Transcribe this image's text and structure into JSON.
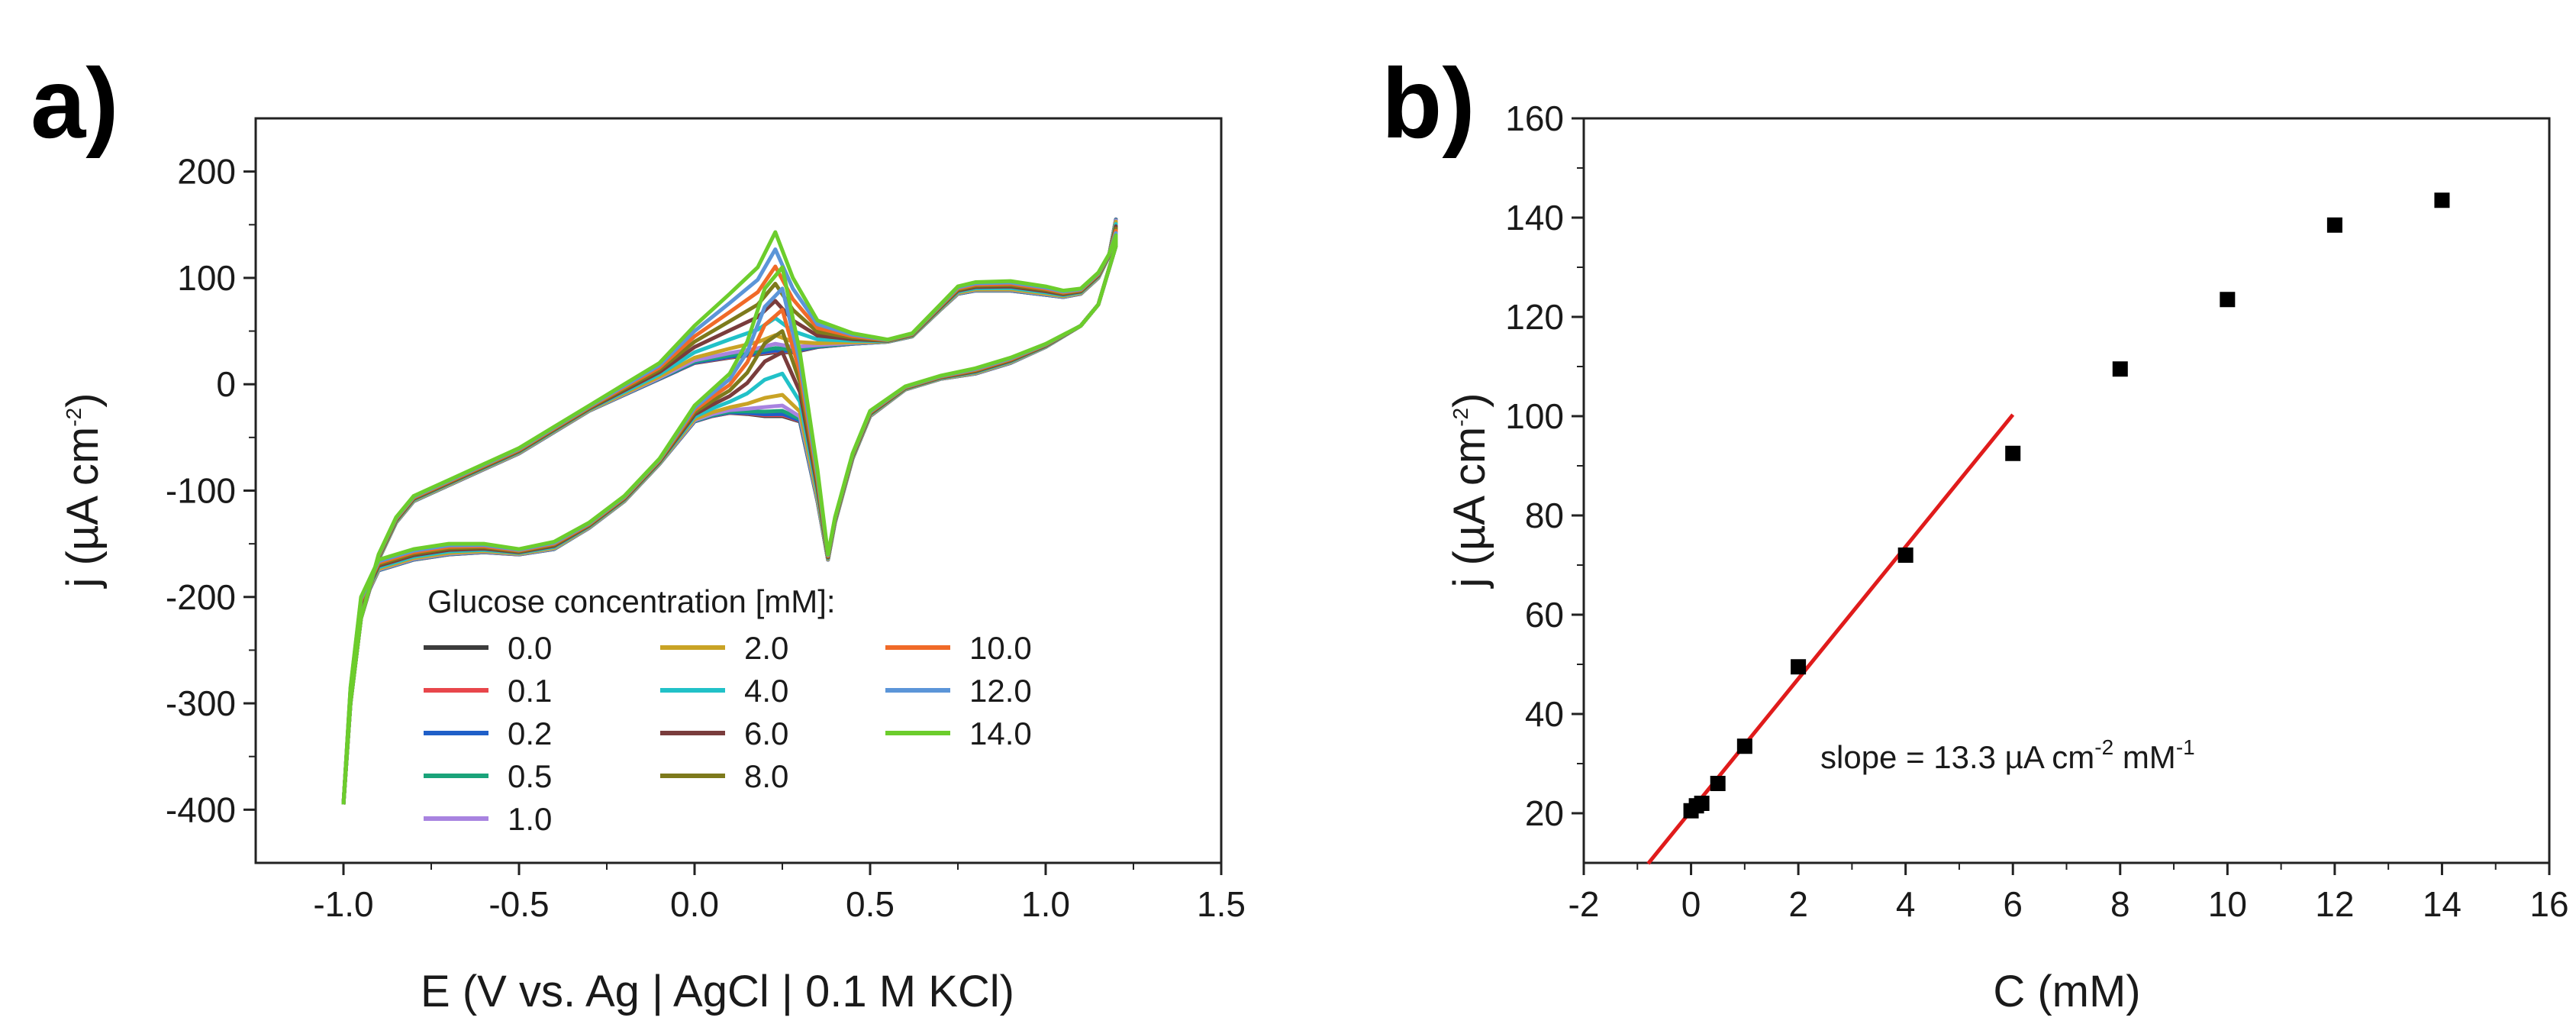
{
  "chart_data": [
    {
      "type": "line",
      "panel_label": "a)",
      "title": "",
      "xlabel": "E (V vs. Ag | AgCl | 0.1 M KCl)",
      "ylabel_main": "j (µA cm",
      "ylabel_sup": "-2",
      "ylabel_tail": ")",
      "xlim": [
        -1.25,
        1.5
      ],
      "ylim": [
        -450,
        250
      ],
      "xticks": [
        -1.0,
        -0.5,
        0.0,
        0.5,
        1.0,
        1.5
      ],
      "xtick_labels": [
        "-1.0",
        "-0.5",
        "0.0",
        "0.5",
        "1.0",
        "1.5"
      ],
      "yticks": [
        -400,
        -300,
        -200,
        -100,
        0,
        100,
        200
      ],
      "ytick_labels": [
        "-400",
        "-300",
        "-200",
        "-100",
        "0",
        "100",
        "200"
      ],
      "legend_title": "Glucose concentration [mM]:",
      "legend_position": "bottom-center",
      "series": [
        {
          "name": "0.0",
          "conc": 0.0,
          "color": "#3c3c3c"
        },
        {
          "name": "0.1",
          "conc": 0.1,
          "color": "#e8464b"
        },
        {
          "name": "0.2",
          "conc": 0.2,
          "color": "#1f5fc8"
        },
        {
          "name": "0.5",
          "conc": 0.5,
          "color": "#1aa37a"
        },
        {
          "name": "1.0",
          "conc": 1.0,
          "color": "#a883e0"
        },
        {
          "name": "2.0",
          "conc": 2.0,
          "color": "#c9a325"
        },
        {
          "name": "4.0",
          "conc": 4.0,
          "color": "#21c1c8"
        },
        {
          "name": "6.0",
          "conc": 6.0,
          "color": "#7a3c3c"
        },
        {
          "name": "8.0",
          "conc": 8.0,
          "color": "#7d7a1c"
        },
        {
          "name": "10.0",
          "conc": 10.0,
          "color": "#f06a28"
        },
        {
          "name": "12.0",
          "conc": 12.0,
          "color": "#5b95d8"
        },
        {
          "name": "14.0",
          "conc": 14.0,
          "color": "#6ccd2c"
        }
      ],
      "anodic_sweep": {
        "E": [
          -1.0,
          -0.98,
          -0.95,
          -0.9,
          -0.85,
          -0.8,
          -0.7,
          -0.6,
          -0.5,
          -0.4,
          -0.3,
          -0.2,
          -0.1,
          0.0,
          0.1,
          0.18,
          0.23,
          0.28,
          0.35,
          0.45,
          0.55,
          0.62,
          0.7,
          0.75,
          0.8,
          0.9,
          1.0,
          1.05,
          1.1,
          1.15,
          1.18,
          1.2
        ],
        "j_base": [
          -395,
          -300,
          -220,
          -165,
          -130,
          -110,
          -95,
          -80,
          -65,
          -45,
          -25,
          -10,
          5,
          20,
          25,
          28,
          30,
          30,
          35,
          38,
          40,
          45,
          70,
          85,
          88,
          88,
          84,
          82,
          85,
          100,
          120,
          155
        ],
        "j_max": [
          -395,
          -300,
          -220,
          -160,
          -125,
          -105,
          -90,
          -75,
          -60,
          -40,
          -20,
          0,
          20,
          55,
          85,
          110,
          143,
          100,
          60,
          48,
          42,
          48,
          75,
          92,
          96,
          97,
          92,
          88,
          90,
          105,
          122,
          140
        ]
      },
      "cathodic_sweep": {
        "E": [
          1.2,
          1.15,
          1.1,
          1.0,
          0.9,
          0.8,
          0.7,
          0.6,
          0.5,
          0.45,
          0.4,
          0.38,
          0.35,
          0.3,
          0.25,
          0.2,
          0.15,
          0.1,
          0.05,
          0.0,
          -0.1,
          -0.2,
          -0.3,
          -0.4,
          -0.5,
          -0.6,
          -0.7,
          -0.8,
          -0.9,
          -0.95,
          -0.98,
          -1.0
        ],
        "j_base": [
          130,
          75,
          55,
          35,
          20,
          10,
          5,
          -5,
          -30,
          -70,
          -130,
          -165,
          -110,
          -35,
          -30,
          -30,
          -28,
          -27,
          -30,
          -35,
          -75,
          -110,
          -135,
          -155,
          -160,
          -158,
          -160,
          -165,
          -175,
          -210,
          -290,
          -395
        ],
        "j_max": [
          130,
          75,
          55,
          38,
          25,
          15,
          8,
          -2,
          -25,
          -65,
          -125,
          -160,
          -80,
          30,
          110,
          90,
          40,
          10,
          -5,
          -20,
          -70,
          -105,
          -130,
          -148,
          -155,
          -150,
          -150,
          -155,
          -165,
          -200,
          -285,
          -395
        ]
      }
    },
    {
      "type": "scatter",
      "panel_label": "b)",
      "title": "",
      "xlabel": "C (mM)",
      "ylabel_main": "j (µA cm",
      "ylabel_sup": "-2",
      "ylabel_tail": ")",
      "xlim": [
        -2,
        16
      ],
      "ylim": [
        10,
        160
      ],
      "xticks": [
        -2,
        0,
        2,
        4,
        6,
        8,
        10,
        12,
        14,
        16
      ],
      "xtick_labels": [
        "-2",
        "0",
        "2",
        "4",
        "6",
        "8",
        "10",
        "12",
        "14",
        "16"
      ],
      "yticks": [
        20,
        40,
        60,
        80,
        100,
        120,
        140,
        160
      ],
      "ytick_labels": [
        "20",
        "40",
        "60",
        "80",
        "100",
        "120",
        "140",
        "160"
      ],
      "points": [
        {
          "x": 0.0,
          "y": 20.5
        },
        {
          "x": 0.1,
          "y": 21.5
        },
        {
          "x": 0.2,
          "y": 22.0
        },
        {
          "x": 0.5,
          "y": 26.0
        },
        {
          "x": 1.0,
          "y": 33.5
        },
        {
          "x": 2.0,
          "y": 49.5
        },
        {
          "x": 4.0,
          "y": 72.0
        },
        {
          "x": 6.0,
          "y": 92.5
        },
        {
          "x": 8.0,
          "y": 109.5
        },
        {
          "x": 10.0,
          "y": 123.5
        },
        {
          "x": 12.0,
          "y": 138.5
        },
        {
          "x": 14.0,
          "y": 143.5
        }
      ],
      "marker_color": "#000000",
      "fit": {
        "slope": 13.3,
        "intercept": 20.5,
        "x_start": -0.8,
        "x_end": 6.0,
        "color": "#e01b1b"
      },
      "annotation": {
        "prefix": "slope = 13.3 µA cm",
        "sup1": "-2",
        "mid": " mM",
        "sup2": "-1"
      }
    }
  ]
}
